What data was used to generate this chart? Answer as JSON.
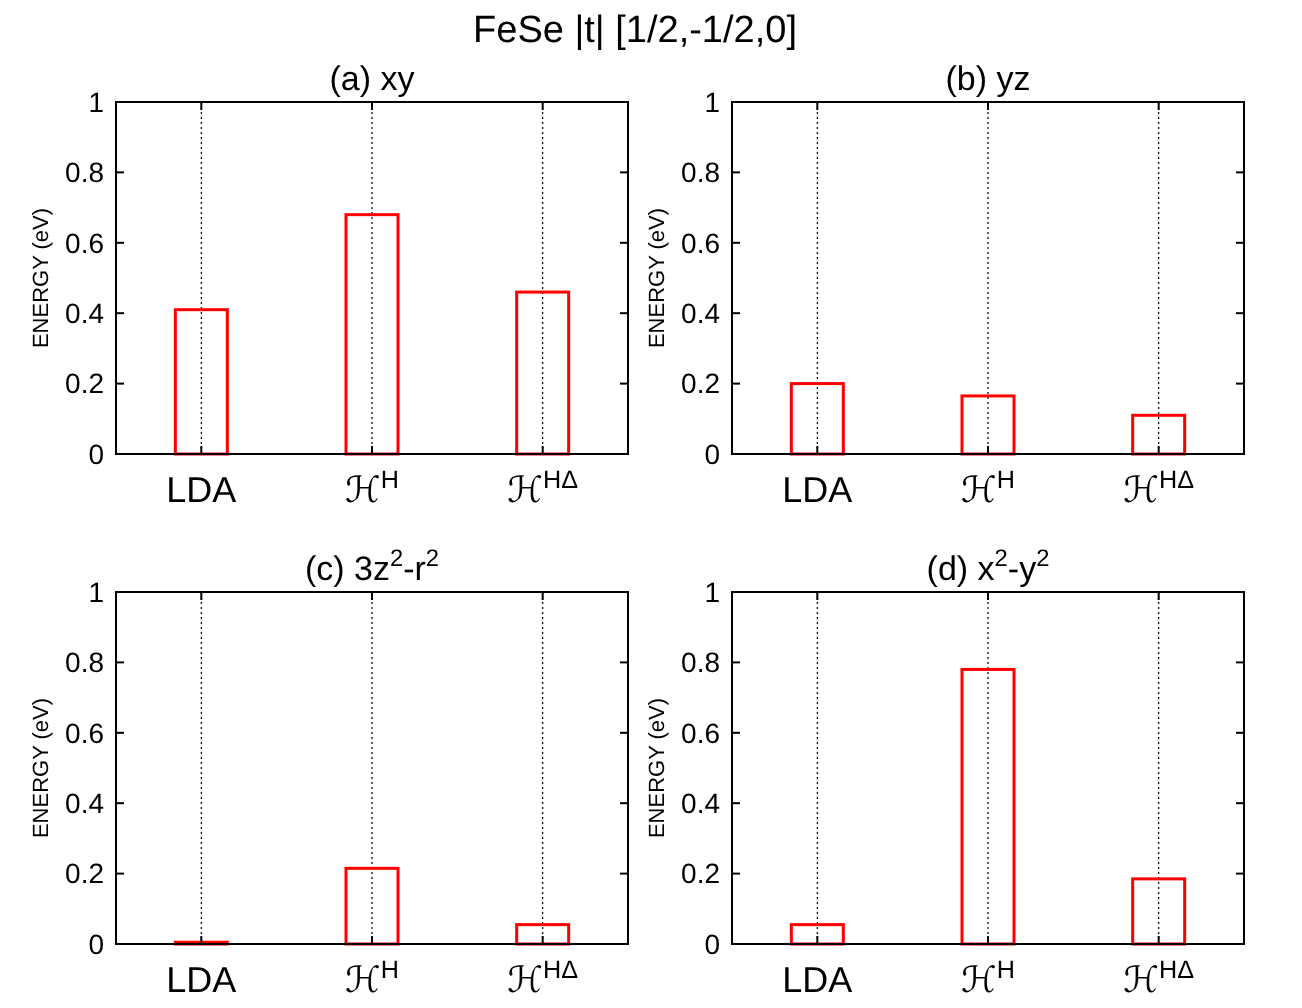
{
  "chart_data": [
    {
      "type": "other",
      "title": "FeSe |t| [1/2,-1/2,0]"
    },
    {
      "type": "bar",
      "title": "(a) xy",
      "ylabel": "ENERGY (eV)",
      "categories": [
        "LDA",
        "ℋ$^{H}$",
        "ℋ$^{HΔ}$"
      ],
      "values": [
        0.41,
        0.68,
        0.46
      ],
      "color": "#ff0000",
      "ylim": [
        0,
        1
      ],
      "yticks": [
        0,
        0.2,
        0.4,
        0.6,
        0.8,
        1
      ],
      "grid": "x"
    },
    {
      "type": "bar",
      "title": "(b) yz",
      "ylabel": "ENERGY (eV)",
      "categories": [
        "LDA",
        "ℋ$^{H}$",
        "ℋ$^{HΔ}$"
      ],
      "values": [
        0.2,
        0.165,
        0.11
      ],
      "color": "#ff0000",
      "ylim": [
        0,
        1
      ],
      "yticks": [
        0,
        0.2,
        0.4,
        0.6,
        0.8,
        1
      ],
      "grid": "x"
    },
    {
      "type": "bar",
      "title": "(c) 3z$^{2}$-r$^{2}$",
      "ylabel": "ENERGY (eV)",
      "categories": [
        "LDA",
        "ℋ$^{H}$",
        "ℋ$^{HΔ}$"
      ],
      "values": [
        0.005,
        0.215,
        0.055
      ],
      "color": "#ff0000",
      "ylim": [
        0,
        1
      ],
      "yticks": [
        0,
        0.2,
        0.4,
        0.6,
        0.8,
        1
      ],
      "grid": "x"
    },
    {
      "type": "bar",
      "title": "(d) x$^{2}$-y$^{2}$",
      "ylabel": "ENERGY (eV)",
      "categories": [
        "LDA",
        "ℋ$^{H}$",
        "ℋ$^{HΔ}$"
      ],
      "values": [
        0.055,
        0.78,
        0.185
      ],
      "color": "#ff0000",
      "ylim": [
        0,
        1
      ],
      "yticks": [
        0,
        0.2,
        0.4,
        0.6,
        0.8,
        1
      ],
      "grid": "x"
    }
  ]
}
